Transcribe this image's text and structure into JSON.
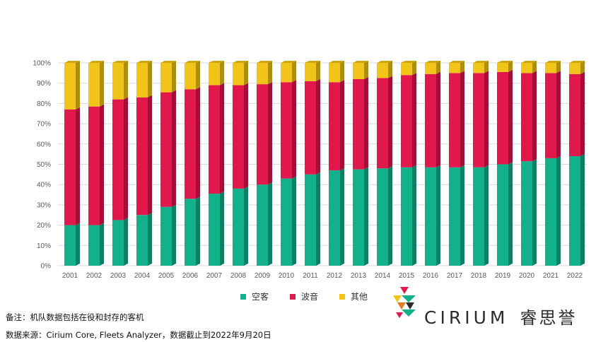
{
  "chart_data": {
    "type": "bar",
    "stacked": true,
    "percent": true,
    "categories": [
      "2001",
      "2002",
      "2003",
      "2004",
      "2005",
      "2006",
      "2007",
      "2008",
      "2009",
      "2010",
      "2011",
      "2012",
      "2013",
      "2014",
      "2015",
      "2016",
      "2017",
      "2018",
      "2019",
      "2020",
      "2021",
      "2022"
    ],
    "series": [
      {
        "name": "空客",
        "color": "#13b08c",
        "values": [
          20,
          20,
          22.5,
          25,
          29,
          33,
          35.5,
          38,
          40,
          43,
          45,
          47,
          47.5,
          48,
          48.5,
          48.5,
          48.5,
          48.5,
          50,
          51.5,
          53,
          54
        ]
      },
      {
        "name": "波音",
        "color": "#e0184c",
        "values": [
          57,
          58.5,
          59.5,
          58,
          56.5,
          54,
          53.5,
          51,
          49.5,
          47.5,
          46,
          43.5,
          44.5,
          44.5,
          45.5,
          46,
          46.5,
          46.5,
          45.5,
          43.5,
          42,
          40.5
        ]
      },
      {
        "name": "其他",
        "color": "#f0c419",
        "values": [
          23,
          21.5,
          18,
          17,
          14.5,
          13,
          11,
          11,
          10.5,
          9.5,
          9,
          9.5,
          8,
          7.5,
          6,
          5.5,
          5,
          5,
          4.5,
          5,
          5,
          5.5
        ]
      }
    ],
    "y_ticks": [
      "0%",
      "10%",
      "20%",
      "30%",
      "40%",
      "50%",
      "60%",
      "70%",
      "80%",
      "90%",
      "100%"
    ],
    "ylim": [
      0,
      100
    ],
    "grid": true,
    "legend_position": "bottom"
  },
  "legend": {
    "airbus": "空客",
    "boeing": "波音",
    "other": "其他"
  },
  "colors": {
    "airbus": "#13b08c",
    "boeing": "#e0184c",
    "other": "#f0c419",
    "grid": "#d9d9d9"
  },
  "notes": {
    "note1": "备注：机队数据包括在役和封存的客机",
    "note2": "数据来源：Cirium Core, Fleets Analyzer，数据截止到2022年9月20日"
  },
  "logo": {
    "word": "CIRIUM",
    "cn": "睿思誉"
  }
}
